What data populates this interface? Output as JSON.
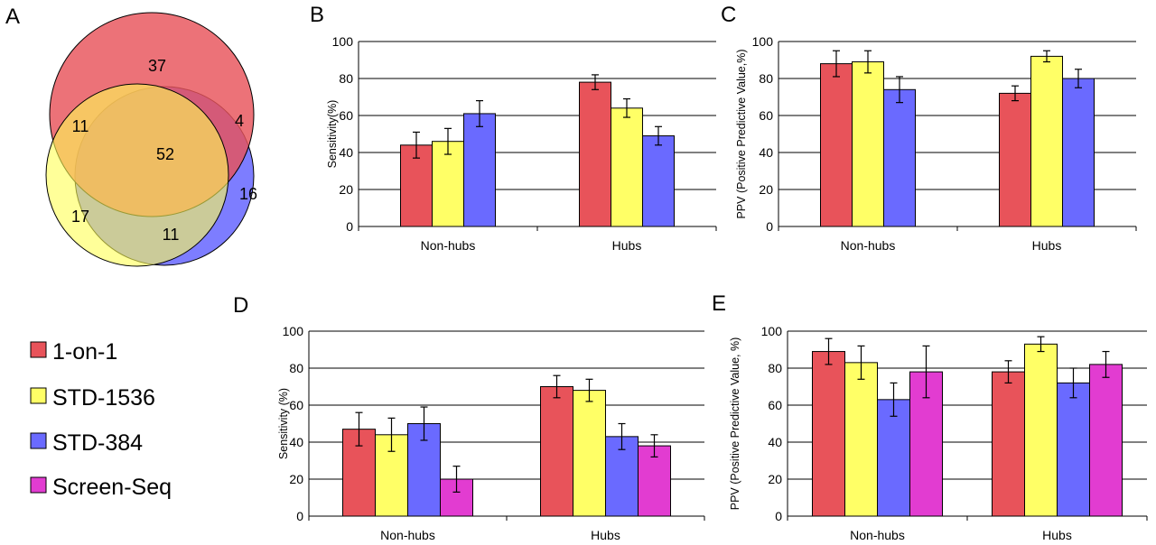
{
  "panel_labels": {
    "a": "A",
    "b": "B",
    "c": "C",
    "d": "D",
    "e": "E"
  },
  "colors": {
    "one_on_one": "#e8535a",
    "std_1536": "#ffff66",
    "std_384": "#6a6aff",
    "screen_seq": "#e23cd1"
  },
  "venn": {
    "sets": [
      "1-on-1",
      "STD-1536",
      "STD-384"
    ],
    "regions": {
      "only_1on1": "37",
      "1on1_std1536": "11",
      "1on1_std384": "4",
      "all_three": "52",
      "only_std1536": "17",
      "std1536_std384": "11",
      "only_std384": "16"
    }
  },
  "legend": {
    "items": [
      {
        "label": "1-on-1",
        "color": "#e8535a"
      },
      {
        "label": "STD-1536",
        "color": "#ffff66"
      },
      {
        "label": "STD-384",
        "color": "#6a6aff"
      },
      {
        "label": "Screen-Seq",
        "color": "#e23cd1"
      }
    ]
  },
  "chart_data": [
    {
      "panel": "B",
      "type": "bar",
      "categories": [
        "Non-hubs",
        "Hubs"
      ],
      "series": [
        {
          "name": "1-on-1",
          "values": [
            44,
            78
          ],
          "errors": [
            7,
            4
          ]
        },
        {
          "name": "STD-1536",
          "values": [
            46,
            64
          ],
          "errors": [
            7,
            5
          ]
        },
        {
          "name": "STD-384",
          "values": [
            61,
            49
          ],
          "errors": [
            7,
            5
          ]
        }
      ],
      "ylabel": "Sensitivity(%)",
      "ylim": [
        0,
        100
      ],
      "yticks": [
        "0",
        "20",
        "40",
        "60",
        "80",
        "100"
      ],
      "grid": true
    },
    {
      "panel": "C",
      "type": "bar",
      "categories": [
        "Non-hubs",
        "Hubs"
      ],
      "series": [
        {
          "name": "1-on-1",
          "values": [
            88,
            72
          ],
          "errors": [
            7,
            4
          ]
        },
        {
          "name": "STD-1536",
          "values": [
            89,
            92
          ],
          "errors": [
            6,
            3
          ]
        },
        {
          "name": "STD-384",
          "values": [
            74,
            80
          ],
          "errors": [
            7,
            5
          ]
        }
      ],
      "ylabel": "PPV (Positive Predictive Value,%)",
      "ylim": [
        0,
        100
      ],
      "yticks": [
        "0",
        "20",
        "40",
        "60",
        "80",
        "100"
      ],
      "grid": true
    },
    {
      "panel": "D",
      "type": "bar",
      "categories": [
        "Non-hubs",
        "Hubs"
      ],
      "series": [
        {
          "name": "1-on-1",
          "values": [
            47,
            70
          ],
          "errors": [
            9,
            6
          ]
        },
        {
          "name": "STD-1536",
          "values": [
            44,
            68
          ],
          "errors": [
            9,
            6
          ]
        },
        {
          "name": "STD-384",
          "values": [
            50,
            43
          ],
          "errors": [
            9,
            7
          ]
        },
        {
          "name": "Screen-Seq",
          "values": [
            20,
            38
          ],
          "errors": [
            7,
            6
          ]
        }
      ],
      "ylabel": "Sensitivity (%)",
      "ylim": [
        0,
        100
      ],
      "yticks": [
        "0",
        "20",
        "40",
        "60",
        "80",
        "100"
      ],
      "grid": true
    },
    {
      "panel": "E",
      "type": "bar",
      "categories": [
        "Non-hubs",
        "Hubs"
      ],
      "series": [
        {
          "name": "1-on-1",
          "values": [
            89,
            78
          ],
          "errors": [
            7,
            6
          ]
        },
        {
          "name": "STD-1536",
          "values": [
            83,
            93
          ],
          "errors": [
            9,
            4
          ]
        },
        {
          "name": "STD-384",
          "values": [
            63,
            72
          ],
          "errors": [
            9,
            8
          ]
        },
        {
          "name": "Screen-Seq",
          "values": [
            78,
            82
          ],
          "errors": [
            14,
            7
          ]
        }
      ],
      "ylabel": "PPV (Positive Predictive Value, %)",
      "ylim": [
        0,
        100
      ],
      "yticks": [
        "0",
        "20",
        "40",
        "60",
        "80",
        "100"
      ],
      "grid": true
    }
  ]
}
